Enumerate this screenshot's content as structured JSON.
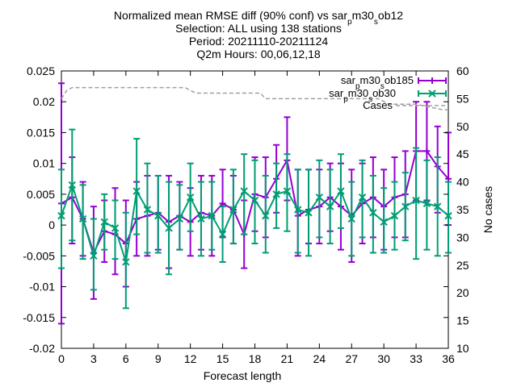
{
  "chart_data": {
    "type": "line",
    "title_lines": [
      "Normalized mean RMSE diff (90% conf) vs sar_pm30_sob12",
      "Selection: ALL using   138 stations",
      "Period: 20211110-20211124",
      "Q2m   Hours: 00,06,12,18"
    ],
    "xlabel": "Forecast length",
    "ylabel": "",
    "y2label": "No cases",
    "xlim": [
      0,
      36
    ],
    "ylim": [
      -0.02,
      0.025
    ],
    "y2lim": [
      10,
      60
    ],
    "x_ticks": [
      0,
      3,
      6,
      9,
      12,
      15,
      18,
      21,
      24,
      27,
      30,
      33,
      36
    ],
    "y_ticks": [
      "-0.02",
      "-0.015",
      "-0.01",
      "-0.005",
      "0",
      "0.005",
      "0.01",
      "0.015",
      "0.02",
      "0.025"
    ],
    "y2_ticks": [
      10,
      15,
      20,
      25,
      30,
      35,
      40,
      45,
      50,
      55,
      60
    ],
    "x": [
      0,
      1,
      2,
      3,
      4,
      5,
      6,
      7,
      8,
      9,
      10,
      11,
      12,
      13,
      14,
      15,
      16,
      17,
      18,
      19,
      20,
      21,
      22,
      23,
      24,
      25,
      26,
      27,
      28,
      29,
      30,
      31,
      32,
      33,
      34,
      35,
      36
    ],
    "series": [
      {
        "name": "sar_pm30_sob185",
        "color": "#9400d3",
        "marker": "plus",
        "values": [
          0.0035,
          0.0045,
          0.001,
          -0.0045,
          -0.001,
          -0.0015,
          -0.003,
          0.001,
          0.0015,
          0.002,
          0.0005,
          0.0015,
          0.0005,
          0.002,
          0.0015,
          0.0035,
          0.0025,
          -0.0015,
          0.005,
          0.0045,
          0.0075,
          0.0105,
          0.0015,
          0.0025,
          0.003,
          0.0045,
          0.003,
          0.0015,
          0.0035,
          0.0045,
          0.003,
          0.0045,
          0.005,
          0.012,
          0.012,
          0.0095,
          0.0075
        ],
        "lower": [
          -0.016,
          -0.003,
          -0.005,
          -0.012,
          -0.006,
          -0.008,
          -0.01,
          -0.005,
          -0.005,
          -0.004,
          -0.007,
          -0.004,
          -0.005,
          -0.004,
          -0.005,
          -0.002,
          -0.003,
          -0.007,
          -0.001,
          -0.002,
          0.002,
          0.004,
          -0.005,
          -0.003,
          -0.003,
          -0.001,
          -0.004,
          -0.006,
          -0.003,
          -0.002,
          -0.004,
          -0.002,
          -0.002,
          0.004,
          0.004,
          0.002,
          0.0
        ],
        "upper": [
          0.023,
          0.011,
          0.007,
          0.003,
          0.004,
          0.006,
          0.004,
          0.007,
          0.008,
          0.008,
          0.008,
          0.007,
          0.006,
          0.008,
          0.008,
          0.009,
          0.008,
          0.004,
          0.011,
          0.011,
          0.013,
          0.0175,
          0.009,
          0.009,
          0.009,
          0.01,
          0.01,
          0.009,
          0.01,
          0.011,
          0.009,
          0.011,
          0.012,
          0.02,
          0.02,
          0.016,
          0.015
        ]
      },
      {
        "name": "sar_pm30_sob30",
        "color": "#009e73",
        "marker": "cross",
        "values": [
          0.0015,
          0.0065,
          0.001,
          -0.005,
          0.0005,
          -0.0005,
          -0.006,
          0.0055,
          0.0025,
          0.0015,
          -0.0005,
          0.001,
          0.0045,
          0.001,
          0.0015,
          -0.0015,
          0.0025,
          0.0055,
          0.004,
          0.0015,
          0.005,
          0.0055,
          0.0025,
          0.002,
          0.0045,
          0.003,
          0.0055,
          0.001,
          0.0045,
          0.002,
          0.0005,
          0.0015,
          0.003,
          0.004,
          0.0035,
          0.003,
          0.0015
        ],
        "lower": [
          -0.007,
          -0.0025,
          -0.0055,
          -0.0105,
          -0.004,
          -0.0055,
          -0.0135,
          -0.0015,
          -0.0045,
          -0.0045,
          -0.008,
          -0.004,
          -0.001,
          -0.005,
          -0.004,
          -0.006,
          -0.003,
          -0.0015,
          -0.003,
          -0.0045,
          -0.0005,
          -0.001,
          -0.0045,
          -0.005,
          -0.002,
          -0.003,
          -0.0005,
          -0.005,
          -0.002,
          -0.0045,
          -0.0045,
          -0.004,
          -0.0025,
          -0.0055,
          -0.004,
          -0.005,
          -0.0045
        ],
        "upper": [
          0.009,
          0.0155,
          0.0065,
          0.001,
          0.005,
          0.004,
          0.002,
          0.014,
          0.01,
          0.008,
          0.007,
          0.0065,
          0.01,
          0.007,
          0.007,
          0.003,
          0.009,
          0.0115,
          0.0105,
          0.008,
          0.01,
          0.0115,
          0.009,
          0.009,
          0.0105,
          0.009,
          0.0115,
          0.007,
          0.0105,
          0.008,
          0.006,
          0.007,
          0.0085,
          0.0125,
          0.0105,
          0.011,
          0.007
        ]
      },
      {
        "name": "Cases",
        "color": "#a0a0a0",
        "axis": "y2",
        "style": "dashed-step",
        "x": [
          0,
          0.5,
          1,
          11.5,
          12.5,
          18.5,
          19,
          22.5,
          23,
          29.5,
          30.5,
          32.5,
          33,
          35.5,
          36
        ],
        "values": [
          55,
          56.5,
          57,
          57,
          56,
          56,
          55,
          55,
          55,
          55,
          54,
          54,
          54,
          53,
          53
        ]
      }
    ],
    "legend": {
      "position": "top-right",
      "entries": [
        "sar_pm30_sob185",
        "sar_pm30_sob30",
        "Cases"
      ]
    },
    "grid": false
  }
}
